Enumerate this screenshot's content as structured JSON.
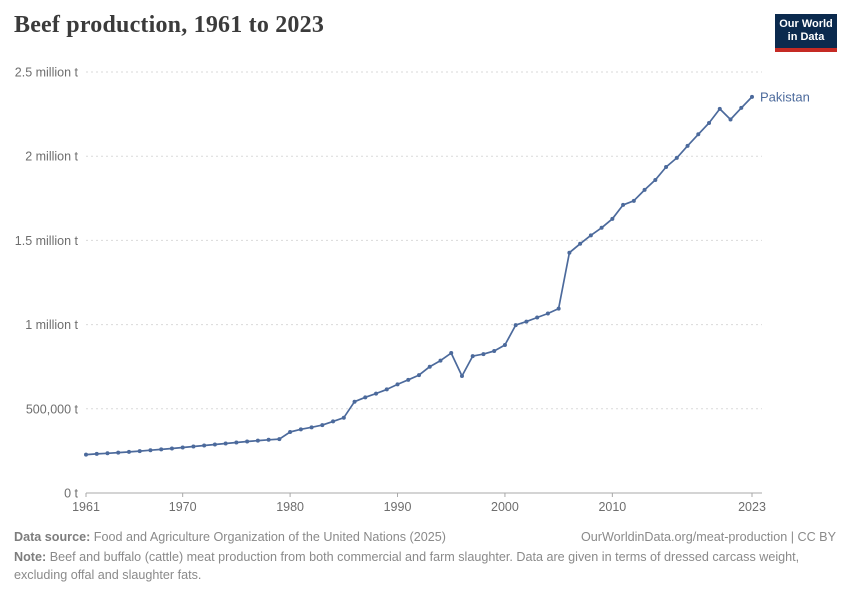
{
  "header": {
    "title": "Beef production, 1961 to 2023",
    "logo": {
      "line1": "Our World",
      "line2": "in Data"
    }
  },
  "chart_data": {
    "type": "line",
    "title": "Beef production, 1961 to 2023",
    "unit": "t",
    "xlim": [
      1961,
      2023
    ],
    "ylim": [
      0,
      2500000
    ],
    "grid": "horizontal-dashed",
    "legend_position": "end-of-line-label",
    "x_ticks": [
      "1961",
      "1970",
      "1980",
      "1990",
      "2000",
      "2010",
      "2023"
    ],
    "x_tick_values": [
      1961,
      1970,
      1980,
      1990,
      2000,
      2010,
      2023
    ],
    "y_ticks": [
      "0 t",
      "500,000 t",
      "1 million t",
      "1.5 million t",
      "2 million t",
      "2.5 million t"
    ],
    "y_tick_values": [
      0,
      500000,
      1000000,
      1500000,
      2000000,
      2500000
    ],
    "x": [
      1961,
      1962,
      1963,
      1964,
      1965,
      1966,
      1967,
      1968,
      1969,
      1970,
      1971,
      1972,
      1973,
      1974,
      1975,
      1976,
      1977,
      1978,
      1979,
      1980,
      1981,
      1982,
      1983,
      1984,
      1985,
      1986,
      1987,
      1988,
      1989,
      1990,
      1991,
      1992,
      1993,
      1994,
      1995,
      1996,
      1997,
      1998,
      1999,
      2000,
      2001,
      2002,
      2003,
      2004,
      2005,
      2006,
      2007,
      2008,
      2009,
      2010,
      2011,
      2012,
      2013,
      2014,
      2015,
      2016,
      2017,
      2018,
      2019,
      2020,
      2021,
      2022,
      2023
    ],
    "series": [
      {
        "name": "Pakistan",
        "color": "#4C6A9C",
        "values": [
          228000,
          232000,
          236000,
          240000,
          244000,
          249000,
          254000,
          259000,
          264000,
          270000,
          276000,
          282000,
          288000,
          294000,
          300000,
          306000,
          311000,
          316000,
          320000,
          362000,
          378000,
          390000,
          403000,
          425000,
          447000,
          542000,
          568000,
          590000,
          615000,
          645000,
          672000,
          700000,
          750000,
          786000,
          831000,
          695000,
          813000,
          825000,
          843000,
          879000,
          997000,
          1018000,
          1042000,
          1066000,
          1095000,
          1427000,
          1480000,
          1530000,
          1575000,
          1628000,
          1711000,
          1735000,
          1800000,
          1859000,
          1936000,
          1990000,
          2061000,
          2130000,
          2197000,
          2281000,
          2218000,
          2287000,
          2352000
        ]
      }
    ]
  },
  "footer": {
    "datasource_label": "Data source:",
    "datasource_text": "Food and Agriculture Organization of the United Nations (2025)",
    "link_text": "OurWorldinData.org/meat-production | CC BY",
    "note_label": "Note:",
    "note_text": "Beef and buffalo (cattle) meat production from both commercial and farm slaughter. Data are given in terms of dressed carcass weight, excluding offal and slaughter fats."
  },
  "colors": {
    "series": "#4C6A9C",
    "grid": "#dadada",
    "axis": "#a8a8a8",
    "tick_text": "#6e6e6e",
    "logo_bg": "#0b2a4e",
    "logo_bar": "#c52a24"
  }
}
